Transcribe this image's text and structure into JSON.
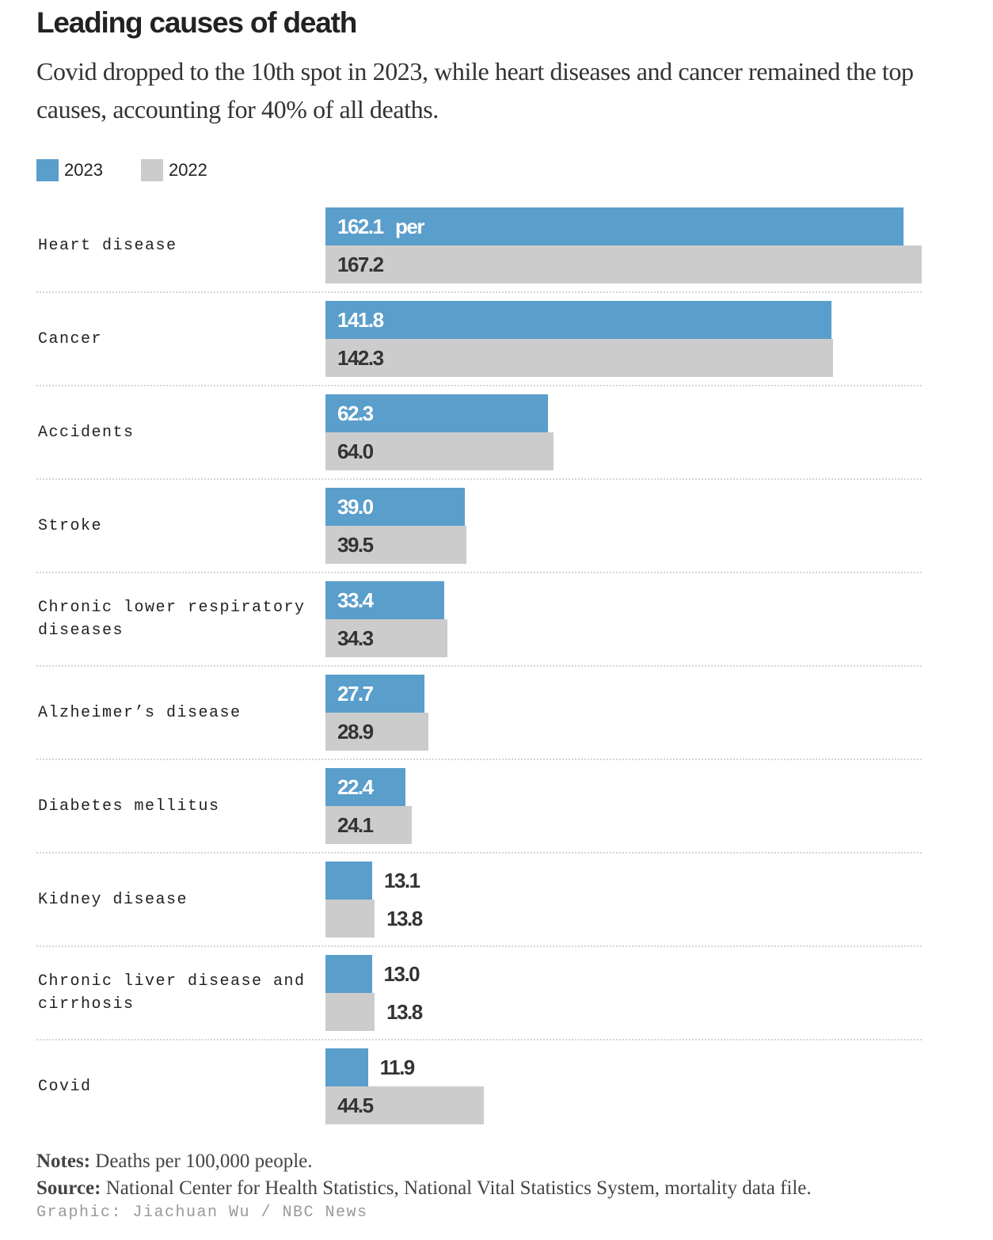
{
  "title": "Leading causes of death",
  "subtitle": "Covid dropped to the 10th spot in 2023, while heart diseases and cancer remained the top causes, accounting for 40% of all deaths.",
  "legend": [
    {
      "label": "2023",
      "color": "#5a9ecb"
    },
    {
      "label": "2022",
      "color": "#cccccc"
    }
  ],
  "unit_label": "per 100,000",
  "notes_label": "Notes:",
  "notes": "Deaths per 100,000 people.",
  "source_label": "Source:",
  "source": "National Center for Health Statistics, National Vital Statistics System, mortality data file.",
  "credit": "Graphic: Jiachuan Wu / NBC News",
  "chart_data": {
    "type": "bar",
    "orientation": "horizontal",
    "categories": [
      "Heart disease",
      "Cancer",
      "Accidents",
      "Stroke",
      "Chronic lower respiratory diseases",
      "Alzheimer’s disease",
      "Diabetes mellitus",
      "Kidney disease",
      "Chronic liver disease and cirrhosis",
      "Covid"
    ],
    "series": [
      {
        "name": "2023",
        "color": "#5a9ecb",
        "values": [
          162.1,
          141.8,
          62.3,
          39.0,
          33.4,
          27.7,
          22.4,
          13.1,
          13.0,
          11.9
        ]
      },
      {
        "name": "2022",
        "color": "#cccccc",
        "values": [
          167.2,
          142.3,
          64.0,
          39.5,
          34.3,
          28.9,
          24.1,
          13.8,
          13.8,
          44.5
        ]
      }
    ],
    "data_labels": [
      [
        "162.1",
        "141.8",
        "62.3",
        "39.0",
        "33.4",
        "27.7",
        "22.4",
        "13.1",
        "13.0",
        "11.9"
      ],
      [
        "167.2",
        "142.3",
        "64.0",
        "39.5",
        "34.3",
        "28.9",
        "24.1",
        "13.8",
        "13.8",
        "44.5"
      ]
    ],
    "grid": false
  }
}
